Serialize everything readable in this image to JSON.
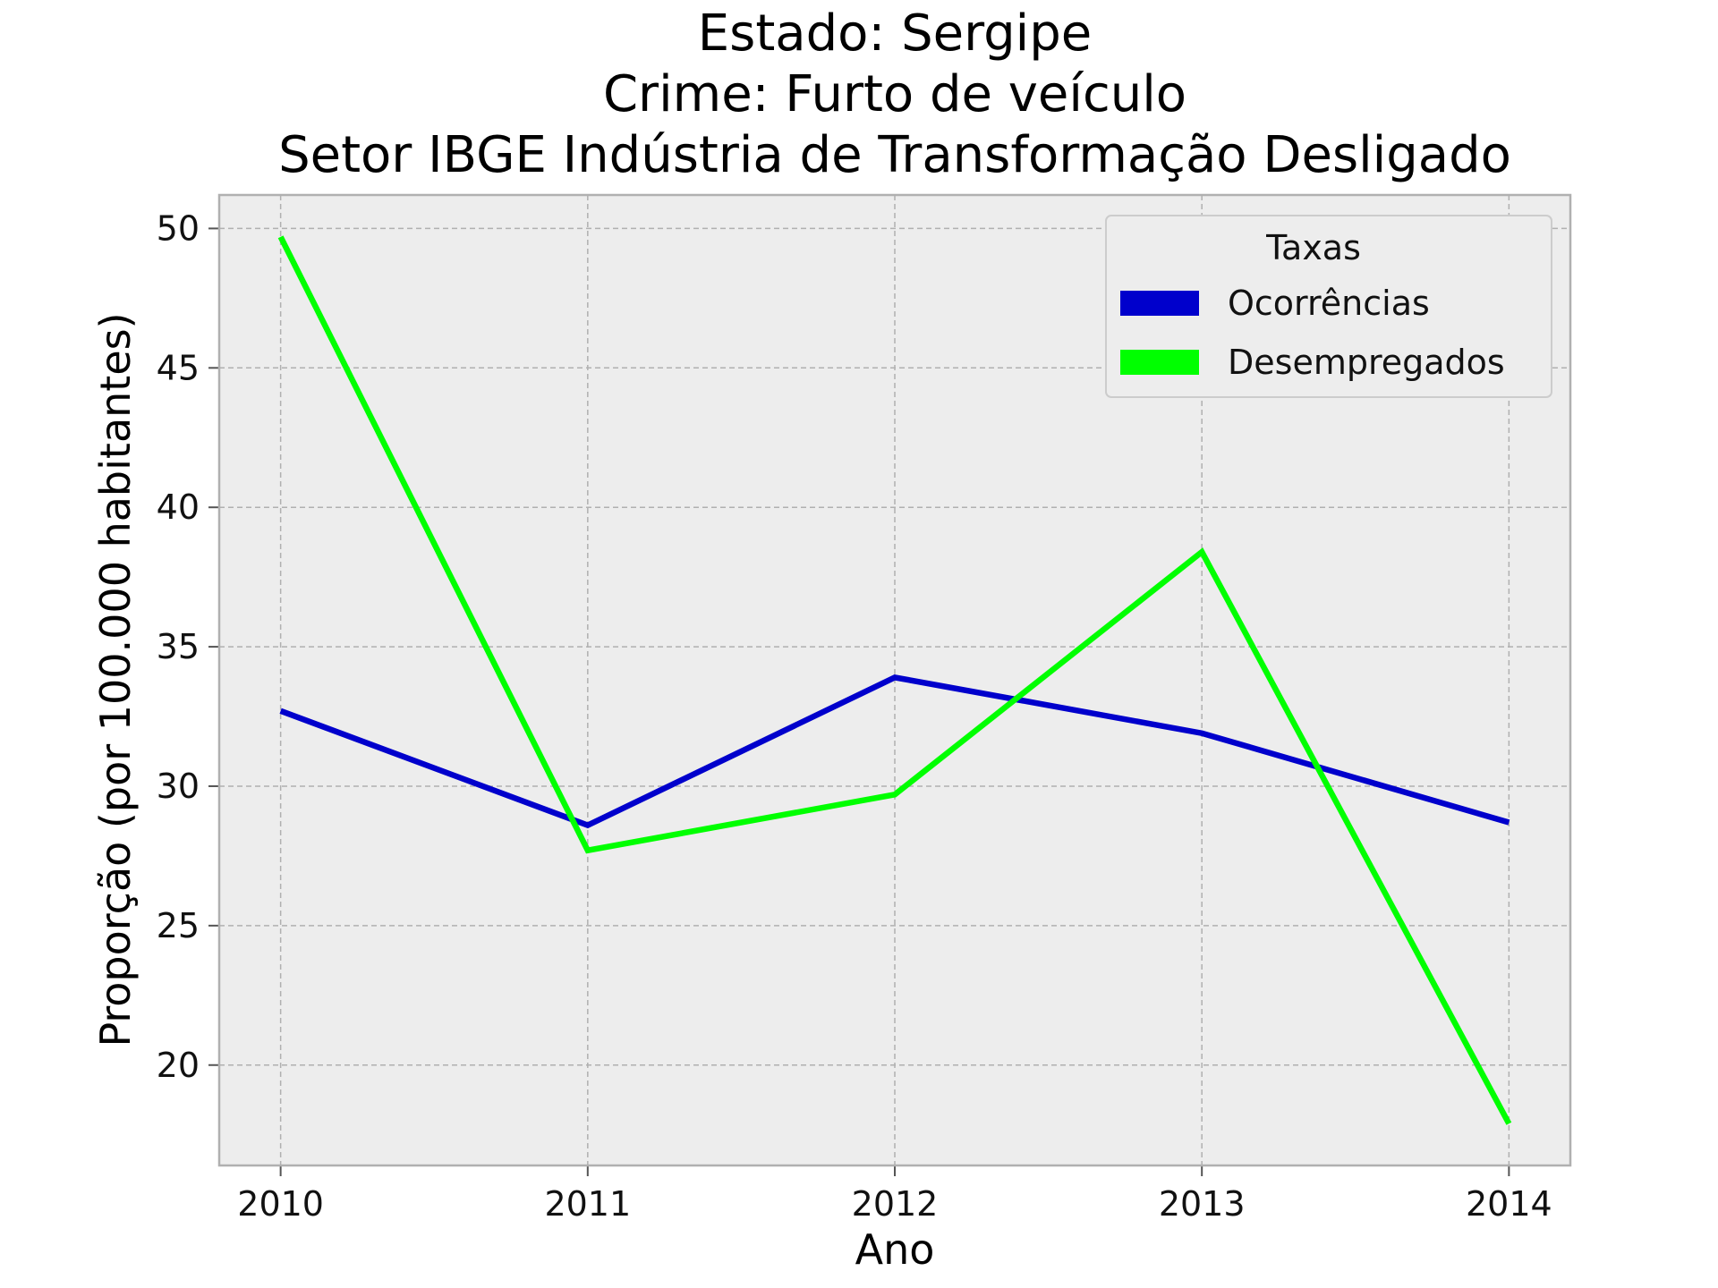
{
  "chart_data": {
    "type": "line",
    "title_lines": [
      "Estado: Sergipe",
      "Crime: Furto de veículo",
      "Setor IBGE  Indústria de Transformação   Desligado"
    ],
    "xlabel": "Ano",
    "ylabel": "Proporção (por 100.000 habitantes)",
    "x": [
      2010,
      2011,
      2012,
      2013,
      2014
    ],
    "x_tick_labels": [
      "2010",
      "2011",
      "2012",
      "2013",
      "2014"
    ],
    "xlim": [
      2009.8,
      2014.2
    ],
    "y_ticks": [
      20,
      25,
      30,
      35,
      40,
      45,
      50
    ],
    "y_tick_labels": [
      "20",
      "25",
      "30",
      "35",
      "40",
      "45",
      "50"
    ],
    "ylim": [
      16.4,
      51.2
    ],
    "grid": true,
    "legend": {
      "title": "Taxas",
      "placement": "top-right"
    },
    "series": [
      {
        "name": "Ocorrências",
        "color": "#0000cc",
        "values": [
          32.7,
          28.6,
          33.9,
          31.9,
          28.7
        ]
      },
      {
        "name": "Desempregados",
        "color": "#00ff00",
        "values": [
          49.7,
          27.7,
          29.7,
          38.4,
          17.9
        ]
      }
    ]
  }
}
